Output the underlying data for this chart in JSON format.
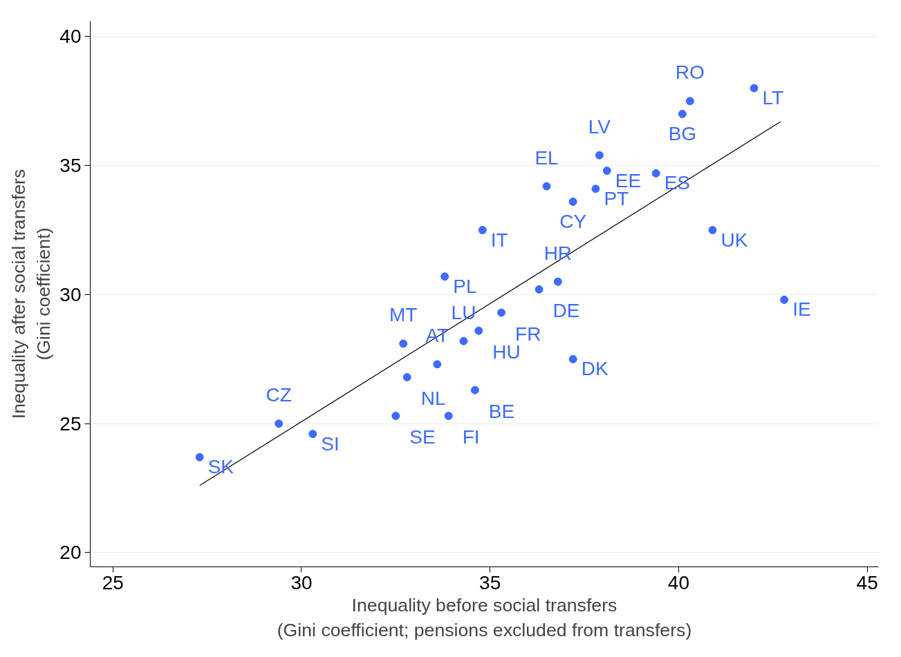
{
  "chart_data": {
    "type": "scatter",
    "xlabel": "Inequality before social transfers\n(Gini coefficient; pensions excluded from transfers)",
    "ylabel": "Inequality after social transfers\n(Gini coefficient)",
    "xlim": [
      24.4,
      45.3
    ],
    "ylim": [
      19.45,
      40.6
    ],
    "xticks": [
      25,
      30,
      35,
      40,
      45
    ],
    "yticks": [
      20,
      25,
      30,
      35,
      40
    ],
    "grid": "y",
    "series": [
      {
        "marker": "circle",
        "color": "#3d6bff",
        "x": [
          27.3,
          29.4,
          30.3,
          32.5,
          32.8,
          33.9,
          33.6,
          34.6,
          32.7,
          34.3,
          34.7,
          35.3,
          36.3,
          36.8,
          33.8,
          34.8,
          37.2,
          37.2,
          36.5,
          37.8,
          37.9,
          38.1,
          39.4,
          40.1,
          40.3,
          42.0,
          40.9,
          42.8
        ],
        "values": [
          23.7,
          25.0,
          24.6,
          25.3,
          26.8,
          25.3,
          27.3,
          26.3,
          28.1,
          28.2,
          28.6,
          29.3,
          30.2,
          30.5,
          30.7,
          32.5,
          27.5,
          33.6,
          34.2,
          34.1,
          35.4,
          34.8,
          34.7,
          37.0,
          37.5,
          38.0,
          32.5,
          29.8
        ]
      },
      {
        "type": "line",
        "color": "#000000",
        "x": [
          27.3,
          42.7
        ],
        "values": [
          22.6,
          36.7
        ]
      }
    ],
    "annotations": [
      {
        "text": "SK",
        "x": 27.3,
        "y": 23.7
      },
      {
        "text": "CZ",
        "x": 29.4,
        "y": 25.0
      },
      {
        "text": "SI",
        "x": 30.3,
        "y": 24.6
      },
      {
        "text": "SE",
        "x": 32.5,
        "y": 25.3
      },
      {
        "text": "NL",
        "x": 32.8,
        "y": 26.8
      },
      {
        "text": "FI",
        "x": 33.9,
        "y": 25.3
      },
      {
        "text": "AT",
        "x": 33.6,
        "y": 27.3
      },
      {
        "text": "BE",
        "x": 34.6,
        "y": 26.3
      },
      {
        "text": "MT",
        "x": 32.7,
        "y": 28.1
      },
      {
        "text": "LU",
        "x": 34.3,
        "y": 28.2
      },
      {
        "text": "HU",
        "x": 34.7,
        "y": 28.6
      },
      {
        "text": "FR",
        "x": 35.3,
        "y": 29.3
      },
      {
        "text": "DE",
        "x": 36.3,
        "y": 30.2
      },
      {
        "text": "HR",
        "x": 36.8,
        "y": 30.5
      },
      {
        "text": "PL",
        "x": 33.8,
        "y": 30.7
      },
      {
        "text": "IT",
        "x": 34.8,
        "y": 32.5
      },
      {
        "text": "DK",
        "x": 37.2,
        "y": 27.5
      },
      {
        "text": "CY",
        "x": 37.2,
        "y": 33.6
      },
      {
        "text": "EL",
        "x": 36.5,
        "y": 34.2
      },
      {
        "text": "PT",
        "x": 37.8,
        "y": 34.1
      },
      {
        "text": "LV",
        "x": 37.9,
        "y": 35.4
      },
      {
        "text": "EE",
        "x": 38.1,
        "y": 34.8
      },
      {
        "text": "ES",
        "x": 39.4,
        "y": 34.7
      },
      {
        "text": "BG",
        "x": 40.1,
        "y": 37.0
      },
      {
        "text": "RO",
        "x": 40.3,
        "y": 37.5
      },
      {
        "text": "LT",
        "x": 42.0,
        "y": 38.0
      },
      {
        "text": "UK",
        "x": 40.9,
        "y": 32.5
      },
      {
        "text": "IE",
        "x": 42.8,
        "y": 29.8
      }
    ]
  }
}
